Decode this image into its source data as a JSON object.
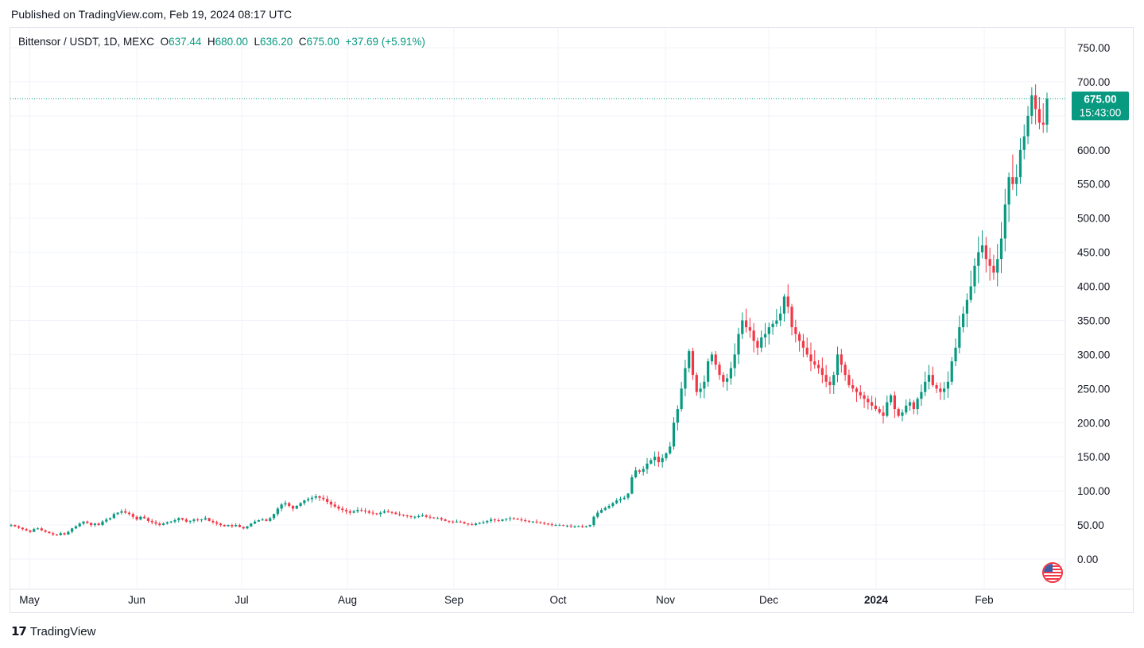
{
  "published": "Published on TradingView.com, Feb 19, 2024 08:17 UTC",
  "legend": {
    "symbol": "Bittensor / USDT, 1D, MEXC",
    "o_label": "O",
    "o": "637.44",
    "h_label": "H",
    "h": "680.00",
    "l_label": "L",
    "l": "636.20",
    "c_label": "C",
    "c": "675.00",
    "change": "+37.69 (+5.91%)"
  },
  "price_label": {
    "price": "675.00",
    "countdown": "15:43:00"
  },
  "footer": {
    "brand": "TradingView"
  },
  "colors": {
    "up": "#089981",
    "down": "#f23645",
    "grid": "#f0f3fa",
    "axis_text": "#131722"
  },
  "chart_data": {
    "type": "candlestick",
    "title": "Bittensor / USDT, 1D, MEXC",
    "ylim": [
      -35,
      775
    ],
    "y_ticks": [
      "750.00",
      "700.00",
      "650.00",
      "600.00",
      "550.00",
      "500.00",
      "450.00",
      "400.00",
      "350.00",
      "300.00",
      "250.00",
      "200.00",
      "150.00",
      "100.00",
      "50.00",
      "0.00"
    ],
    "x_ticks": [
      "May",
      "Jun",
      "Jul",
      "Aug",
      "Sep",
      "Oct",
      "Nov",
      "Dec",
      "2024",
      "Feb"
    ],
    "last_price": 675.0,
    "closes_daily_approx": [
      50,
      48,
      46,
      44,
      42,
      40,
      44,
      45,
      42,
      40,
      38,
      36,
      35,
      38,
      36,
      40,
      45,
      48,
      52,
      55,
      53,
      50,
      52,
      50,
      55,
      58,
      60,
      66,
      68,
      70,
      68,
      66,
      62,
      58,
      62,
      60,
      56,
      54,
      52,
      50,
      52,
      54,
      55,
      57,
      60,
      58,
      55,
      56,
      58,
      57,
      58,
      60,
      56,
      54,
      52,
      50,
      48,
      50,
      48,
      50,
      47,
      45,
      48,
      52,
      55,
      57,
      58,
      56,
      60,
      66,
      74,
      80,
      82,
      78,
      74,
      78,
      82,
      86,
      88,
      90,
      92,
      90,
      88,
      84,
      80,
      77,
      74,
      72,
      70,
      68,
      70,
      72,
      71,
      70,
      68,
      67,
      66,
      68,
      70,
      69,
      68,
      66,
      65,
      64,
      63,
      62,
      62,
      63,
      64,
      62,
      61,
      60,
      60,
      58,
      56,
      55,
      54,
      55,
      54,
      52,
      51,
      50,
      52,
      53,
      54,
      56,
      58,
      57,
      56,
      58,
      59,
      60,
      59,
      58,
      57,
      56,
      55,
      55,
      54,
      53,
      52,
      51,
      50,
      50,
      50,
      49,
      49,
      48,
      48,
      48,
      47,
      48,
      50,
      62,
      68,
      72,
      75,
      78,
      82,
      86,
      88,
      90,
      96,
      120,
      130,
      128,
      132,
      140,
      145,
      150,
      142,
      148,
      155,
      165,
      200,
      220,
      250,
      280,
      305,
      270,
      245,
      250,
      260,
      290,
      300,
      285,
      270,
      260,
      265,
      280,
      300,
      330,
      350,
      340,
      335,
      320,
      310,
      325,
      330,
      340,
      345,
      350,
      360,
      385,
      370,
      340,
      330,
      320,
      310,
      300,
      290,
      285,
      280,
      270,
      260,
      255,
      270,
      300,
      285,
      270,
      255,
      250,
      245,
      240,
      235,
      230,
      225,
      220,
      215,
      210,
      230,
      240,
      220,
      210,
      215,
      225,
      230,
      220,
      235,
      245,
      260,
      270,
      255,
      250,
      245,
      250,
      260,
      290,
      310,
      340,
      360,
      380,
      400,
      430,
      450,
      460,
      440,
      430,
      420,
      440,
      470,
      520,
      560,
      550,
      560,
      600,
      620,
      650,
      680,
      660,
      640,
      637,
      675
    ]
  }
}
